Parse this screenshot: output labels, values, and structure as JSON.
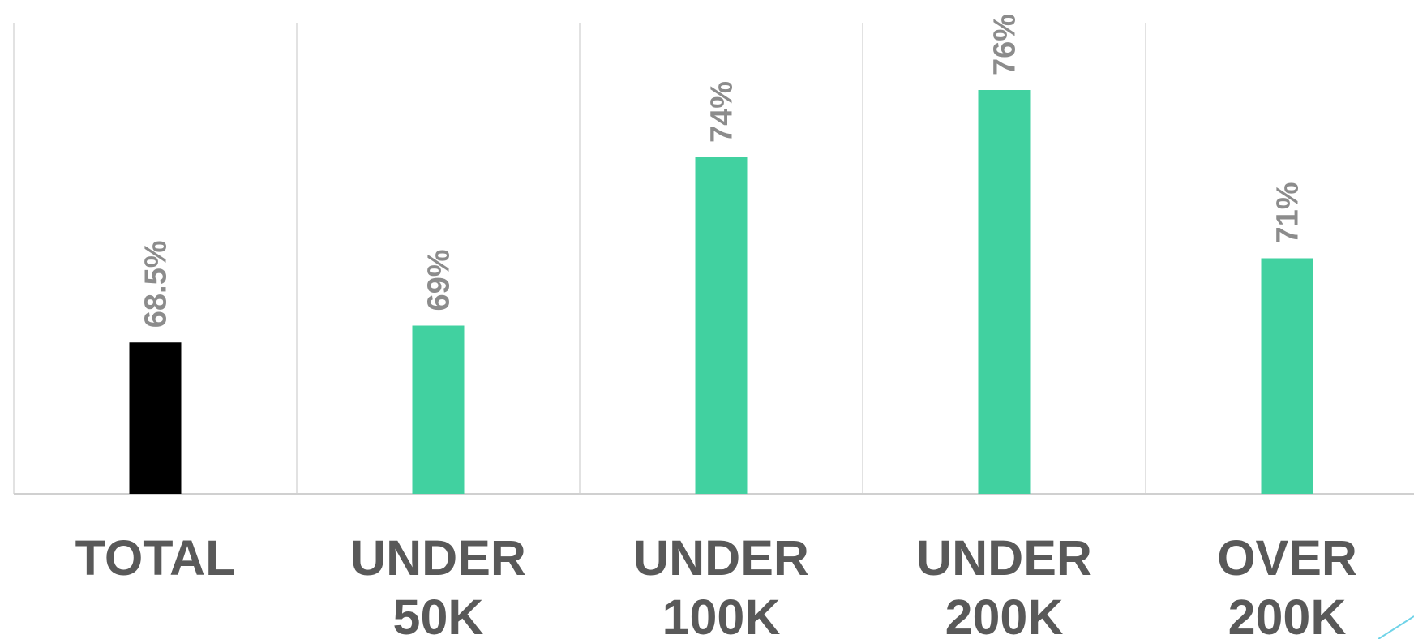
{
  "chart_data": {
    "type": "bar",
    "categories": [
      "TOTAL",
      "UNDER 50K",
      "UNDER 100K",
      "UNDER 200K",
      "OVER 200K"
    ],
    "values": [
      68.5,
      69,
      74,
      76,
      71
    ],
    "value_labels": [
      "68.5%",
      "69%",
      "74%",
      "76%",
      "71%"
    ],
    "colors": [
      "#000000",
      "#41d1a0",
      "#41d1a0",
      "#41d1a0",
      "#41d1a0"
    ],
    "ylim": [
      64,
      78
    ]
  }
}
